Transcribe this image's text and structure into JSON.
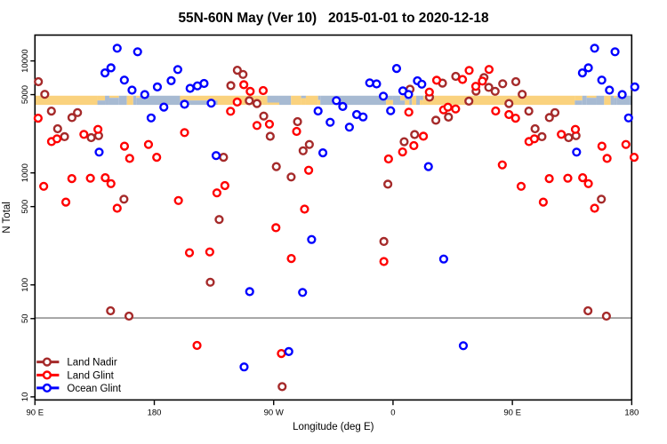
{
  "title": "55N-60N May (Ver 10)   2015-01-01 to 2020-12-18",
  "chart_data": {
    "type": "scatter",
    "title": "55N-60N May (Ver 10)   2015-01-01 to 2020-12-18",
    "xlabel": "Longitude (deg E)",
    "ylabel": "N Total",
    "x_axis": {
      "range_deg_east": [
        90,
        540
      ],
      "ticks": [
        {
          "at": 90,
          "label": "90 E"
        },
        {
          "at": 180,
          "label": "180"
        },
        {
          "at": 270,
          "label": "90 W"
        },
        {
          "at": 360,
          "label": "0"
        },
        {
          "at": 450,
          "label": "90 E"
        },
        {
          "at": 540,
          "label": "180"
        }
      ]
    },
    "y_axis": {
      "scale": "log",
      "range": [
        9.4,
        17200
      ],
      "ticks": [
        {
          "at": 10,
          "label": "10"
        },
        {
          "at": 50,
          "label": "50"
        },
        {
          "at": 100,
          "label": "100"
        },
        {
          "at": 500,
          "label": "500"
        },
        {
          "at": 1000,
          "label": "1000"
        },
        {
          "at": 5000,
          "label": "5000"
        },
        {
          "at": 10000,
          "label": "10000"
        }
      ]
    },
    "grid": false,
    "legend_position": "bottom-left",
    "reference_line": {
      "value": 50,
      "color": "#7f7f7f"
    },
    "wrap": {
      "repeat_lon_below": 183.5,
      "offset_deg": 360
    },
    "series": [
      {
        "name": "Land Nadir",
        "color": "#A52A2A",
        "points": [
          [
            92.6,
            6523.0
          ],
          [
            97.4,
            5033.0
          ],
          [
            102.4,
            3564.0
          ],
          [
            107.1,
            2478.0
          ],
          [
            112.3,
            2106.0
          ],
          [
            117.9,
            3119.0
          ],
          [
            122.1,
            3455.0
          ],
          [
            132.4,
            2065.0
          ],
          [
            138.0,
            2149.0
          ],
          [
            147.0,
            58.67
          ],
          [
            157.1,
            582.5
          ],
          [
            160.9,
            52.58
          ],
          [
            222.2,
            105.6
          ],
          [
            228.9,
            383.4
          ],
          [
            232.2,
            1379.0
          ],
          [
            237.7,
            6019.0
          ],
          [
            242.6,
            8255.0
          ],
          [
            246.9,
            7576.0
          ],
          [
            251.6,
            4413.0
          ],
          [
            257.4,
            4162.0
          ],
          [
            262.5,
            3218.0
          ],
          [
            267.4,
            2122.0
          ],
          [
            272.0,
            1138.0
          ],
          [
            276.4,
            12.34
          ],
          [
            283.2,
            919.4
          ],
          [
            288.0,
            2868.0
          ],
          [
            292.2,
            1576.0
          ],
          [
            296.9,
            1794.0
          ],
          [
            353.1,
            244.2
          ],
          [
            356.1,
            793.0
          ],
          [
            368.4,
            1898.0
          ],
          [
            372.8,
            5585.0
          ],
          [
            376.3,
            2201.0
          ],
          [
            387.5,
            4747.0
          ],
          [
            392.3,
            2953.0
          ],
          [
            397.3,
            6335.0
          ],
          [
            401.8,
            3148.0
          ],
          [
            407.3,
            7278.0
          ],
          [
            417.2,
            4373.0
          ],
          [
            422.6,
            5375.0
          ],
          [
            428.6,
            7107.0
          ],
          [
            432.2,
            5803.0
          ],
          [
            437.0,
            5355.0
          ],
          [
            442.7,
            6255.0
          ],
          [
            447.4,
            4162.0
          ]
        ]
      },
      {
        "name": "Land Glint",
        "color": "#FF0000",
        "points": [
          [
            92.4,
            3080.0
          ],
          [
            96.6,
            759.0
          ],
          [
            102.5,
            1905.0
          ],
          [
            106.6,
            2016.0
          ],
          [
            113.3,
            548.4
          ],
          [
            117.8,
            889.7
          ],
          [
            126.9,
            2209.0
          ],
          [
            131.8,
            896.2
          ],
          [
            137.5,
            2447.0
          ],
          [
            143.0,
            906.1
          ],
          [
            147.3,
            801.8
          ],
          [
            152.0,
            483.5
          ],
          [
            157.5,
            1733.0
          ],
          [
            161.4,
            1347.0
          ],
          [
            175.6,
            1794.0
          ],
          [
            181.8,
            1379.0
          ],
          [
            198.2,
            566.7
          ],
          [
            202.8,
            2291.0
          ],
          [
            206.5,
            193.7
          ],
          [
            212.2,
            28.78
          ],
          [
            221.8,
            196.9
          ],
          [
            227.2,
            663.1
          ],
          [
            233.2,
            770.2
          ],
          [
            237.5,
            3551.0
          ],
          [
            242.5,
            4294.0
          ],
          [
            247.5,
            6130.0
          ],
          [
            252.3,
            5346.0
          ],
          [
            257.4,
            2651.0
          ],
          [
            262.1,
            5434.0
          ],
          [
            266.8,
            2725.0
          ],
          [
            271.7,
            324.1
          ],
          [
            275.8,
            24.38
          ],
          [
            283.3,
            172.0
          ],
          [
            287.3,
            2346.0
          ],
          [
            293.3,
            474.7
          ],
          [
            296.4,
            1056.0
          ],
          [
            353.1,
            161.6
          ],
          [
            356.6,
            1332.0
          ],
          [
            367.2,
            1539.0
          ],
          [
            371.9,
            3487.0
          ],
          [
            375.7,
            1752.0
          ],
          [
            382.9,
            2126.0
          ],
          [
            387.4,
            5268.0
          ],
          [
            392.9,
            6716.0
          ],
          [
            398.1,
            3656.0
          ],
          [
            401.4,
            3862.0
          ],
          [
            407.2,
            3724.0
          ],
          [
            412.4,
            6827.0
          ],
          [
            417.4,
            8225.0
          ],
          [
            422.4,
            5932.0
          ],
          [
            427.4,
            6607.0
          ],
          [
            432.4,
            8392.0
          ],
          [
            437.4,
            3571.0
          ],
          [
            442.4,
            1179.0
          ],
          [
            447.4,
            3319.0
          ]
        ]
      },
      {
        "name": "Ocean Glint",
        "color": "#0000FF",
        "points": [
          [
            138.4,
            1533.0
          ],
          [
            142.8,
            7815.0
          ],
          [
            147.3,
            8673.0
          ],
          [
            152.0,
            12984.0
          ],
          [
            157.4,
            6741.0
          ],
          [
            163.2,
            5484.0
          ],
          [
            167.4,
            12069.0
          ],
          [
            172.8,
            5005.0
          ],
          [
            177.6,
            3097.0
          ],
          [
            182.3,
            5857.0
          ],
          [
            187.2,
            3869.0
          ],
          [
            192.7,
            6655.0
          ],
          [
            197.7,
            8377.0
          ],
          [
            202.8,
            4102.0
          ],
          [
            207.0,
            5688.0
          ],
          [
            212.5,
            5986.0
          ],
          [
            217.5,
            6289.0
          ],
          [
            222.9,
            4193.0
          ],
          [
            226.6,
            1428.0
          ],
          [
            247.7,
            18.5
          ],
          [
            251.9,
            87.04
          ],
          [
            281.4,
            25.38
          ],
          [
            291.8,
            85.62
          ],
          [
            298.6,
            254.2
          ],
          [
            303.5,
            3571.0
          ],
          [
            307.1,
            1511.0
          ],
          [
            312.6,
            2832.0
          ],
          [
            317.3,
            4421.0
          ],
          [
            322.1,
            3919.0
          ],
          [
            327.1,
            2561.0
          ],
          [
            332.6,
            3319.0
          ],
          [
            337.4,
            3159.0
          ],
          [
            342.4,
            6370.0
          ],
          [
            347.6,
            6232.0
          ],
          [
            352.7,
            4844.0
          ],
          [
            358.2,
            3590.0
          ],
          [
            362.7,
            8562.0
          ],
          [
            367.4,
            5404.0
          ],
          [
            371.7,
            5024.0
          ],
          [
            378.4,
            6643.0
          ],
          [
            381.7,
            6198.0
          ],
          [
            386.7,
            1138.0
          ],
          [
            398.2,
            170.1
          ],
          [
            413.0,
            28.63
          ]
        ]
      }
    ],
    "map_strip": {
      "land_color": "#FAD27E",
      "ocean_color": "#A7BAD2",
      "n_top": 4890,
      "n_bottom": 4050,
      "segments": [
        [
          90.0,
          137.1,
          "land"
        ],
        [
          137.1,
          142.8,
          "land_top"
        ],
        [
          142.8,
          146.1,
          "ocean"
        ],
        [
          146.1,
          153.3,
          "ocean_landsliver_top"
        ],
        [
          153.3,
          159.3,
          "ocean"
        ],
        [
          159.3,
          164.1,
          "land"
        ],
        [
          164.1,
          166.4,
          "ocean"
        ],
        [
          166.4,
          168.9,
          "ocean_landsliver_top"
        ],
        [
          168.9,
          199.4,
          "ocean"
        ],
        [
          199.4,
          227.6,
          "land_top"
        ],
        [
          227.6,
          265.2,
          "land"
        ],
        [
          265.2,
          274.2,
          "ocean_landsliver_bottom"
        ],
        [
          274.2,
          283.1,
          "ocean"
        ],
        [
          283.1,
          290.7,
          "land"
        ],
        [
          290.7,
          294.3,
          "land_oceansliver_top"
        ],
        [
          294.3,
          303.5,
          "land"
        ],
        [
          303.5,
          305.2,
          "land_bottom"
        ],
        [
          305.2,
          354.7,
          "ocean"
        ],
        [
          354.7,
          360.0,
          "land_bottom"
        ],
        [
          360.0,
          365.4,
          "ocean"
        ],
        [
          365.4,
          369.0,
          "land_top"
        ],
        [
          369.0,
          372.3,
          "land_bottom"
        ],
        [
          372.3,
          374.3,
          "ocean"
        ],
        [
          374.3,
          377.5,
          "land"
        ],
        [
          377.5,
          380.2,
          "ocean"
        ],
        [
          380.2,
          382.8,
          "land_bottom"
        ],
        [
          382.8,
          497.1,
          "land"
        ],
        [
          497.1,
          502.7,
          "land_top"
        ],
        [
          502.7,
          506.1,
          "ocean"
        ],
        [
          506.1,
          513.3,
          "ocean_landsliver_top"
        ],
        [
          513.3,
          519.2,
          "ocean"
        ],
        [
          519.2,
          524.1,
          "land"
        ],
        [
          524.1,
          526.4,
          "ocean"
        ],
        [
          526.4,
          528.8,
          "ocean_landsliver_top"
        ],
        [
          528.8,
          540.0,
          "ocean"
        ]
      ]
    }
  },
  "legend": {
    "items": [
      {
        "label": "Land Nadir",
        "color": "#A52A2A"
      },
      {
        "label": "Land Glint",
        "color": "#FF0000"
      },
      {
        "label": "Ocean Glint",
        "color": "#0000FF"
      }
    ]
  }
}
